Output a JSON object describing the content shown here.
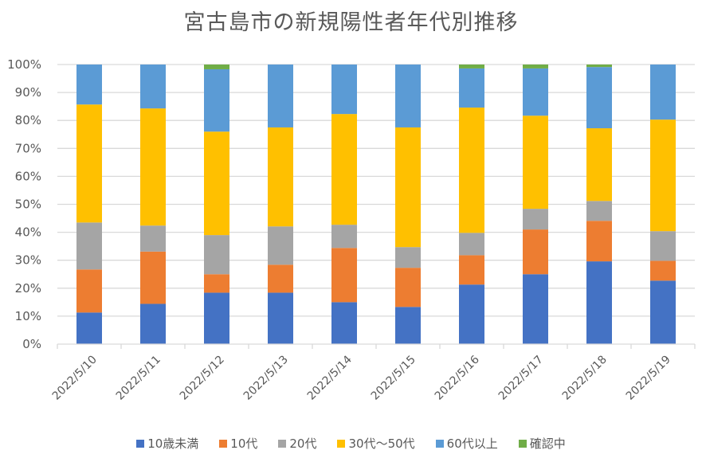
{
  "chart_data": {
    "type": "bar",
    "stacked": "percent",
    "title": "宮古島市の新規陽性者年代別推移",
    "xlabel": "",
    "ylabel": "",
    "ylim": [
      0,
      100
    ],
    "y_ticks": [
      "0%",
      "10%",
      "20%",
      "30%",
      "40%",
      "50%",
      "60%",
      "70%",
      "80%",
      "90%",
      "100%"
    ],
    "grid": true,
    "legend_position": "bottom",
    "categories": [
      "2022/5/10",
      "2022/5/11",
      "2022/5/12",
      "2022/5/13",
      "2022/5/14",
      "2022/5/15",
      "2022/5/16",
      "2022/5/17",
      "2022/5/18",
      "2022/5/19"
    ],
    "series": [
      {
        "name": "10歳未満",
        "color": "#4472C4",
        "values": [
          11.3,
          14.4,
          18.4,
          18.4,
          15.0,
          13.3,
          21.3,
          25.0,
          29.6,
          22.7
        ]
      },
      {
        "name": "10代",
        "color": "#ED7D31",
        "values": [
          15.4,
          18.7,
          6.6,
          10.0,
          19.4,
          14.0,
          10.5,
          16.0,
          14.5,
          7.1
        ]
      },
      {
        "name": "20代",
        "color": "#A5A5A5",
        "values": [
          16.8,
          9.3,
          14.0,
          13.7,
          8.3,
          7.4,
          8.0,
          7.4,
          7.1,
          10.6
        ]
      },
      {
        "name": "30代～50代",
        "color": "#FFC000",
        "values": [
          42.2,
          41.9,
          37.0,
          35.4,
          39.6,
          42.8,
          44.8,
          33.3,
          26.0,
          39.9
        ]
      },
      {
        "name": "60代以上",
        "color": "#5B9BD5",
        "values": [
          14.3,
          15.7,
          22.3,
          22.5,
          17.7,
          22.5,
          14.0,
          16.9,
          21.9,
          19.7
        ]
      },
      {
        "name": "確認中",
        "color": "#70AD47",
        "values": [
          0,
          0,
          1.7,
          0,
          0,
          0,
          1.4,
          1.4,
          0.9,
          0
        ]
      }
    ]
  }
}
